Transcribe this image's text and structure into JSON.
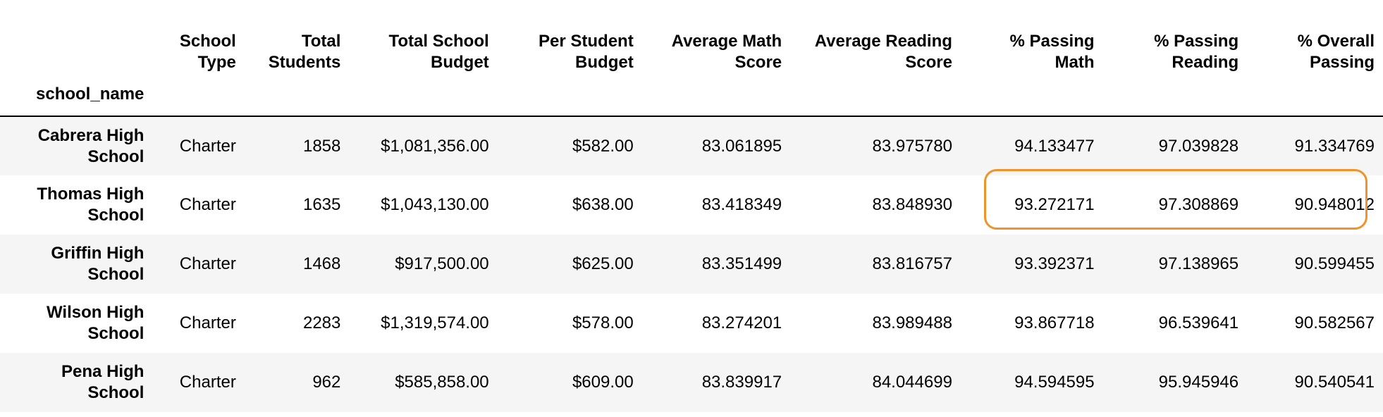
{
  "table": {
    "index_name": "school_name",
    "columns": [
      "School Type",
      "Total Students",
      "Total School Budget",
      "Per Student Budget",
      "Average Math Score",
      "Average Reading Score",
      "% Passing Math",
      "% Passing Reading",
      "% Overall Passing"
    ],
    "rows": [
      {
        "name": "Cabrera High School",
        "cells": [
          "Charter",
          "1858",
          "$1,081,356.00",
          "$582.00",
          "83.061895",
          "83.975780",
          "94.133477",
          "97.039828",
          "91.334769"
        ]
      },
      {
        "name": "Thomas High School",
        "cells": [
          "Charter",
          "1635",
          "$1,043,130.00",
          "$638.00",
          "83.418349",
          "83.848930",
          "93.272171",
          "97.308869",
          "90.948012"
        ]
      },
      {
        "name": "Griffin High School",
        "cells": [
          "Charter",
          "1468",
          "$917,500.00",
          "$625.00",
          "83.351499",
          "83.816757",
          "93.392371",
          "97.138965",
          "90.599455"
        ]
      },
      {
        "name": "Wilson High School",
        "cells": [
          "Charter",
          "2283",
          "$1,319,574.00",
          "$578.00",
          "83.274201",
          "83.989488",
          "93.867718",
          "96.539641",
          "90.582567"
        ]
      },
      {
        "name": "Pena High School",
        "cells": [
          "Charter",
          "962",
          "$585,858.00",
          "$609.00",
          "83.839917",
          "84.044699",
          "94.594595",
          "95.945946",
          "90.540541"
        ]
      }
    ]
  },
  "highlight": {
    "color": "#F0932B"
  },
  "colors": {
    "stripe": "#f5f5f5",
    "background": "#ffffff",
    "text": "#000000"
  }
}
